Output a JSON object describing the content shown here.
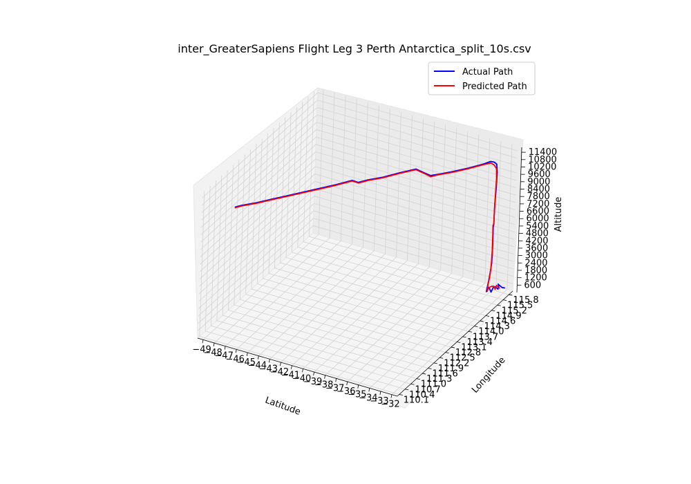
{
  "chart_data": {
    "type": "line",
    "projection": "3d",
    "title": "inter_GreaterSapiens Flight Leg 3 Perth Antarctica_split_10s.csv",
    "xlabel": "Latitude",
    "ylabel": "Longitude",
    "zlabel": "Altitude",
    "grid": true,
    "legend_placement": "top-right",
    "x_ticks": [
      "−49",
      "−48",
      "−47",
      "−46",
      "−45",
      "−44",
      "−43",
      "−42",
      "−41",
      "−40",
      "−39",
      "−38",
      "−37",
      "−36",
      "−35",
      "−34",
      "−33",
      "−32"
    ],
    "y_ticks": [
      "110.1",
      "110.4",
      "110.7",
      "111.0",
      "111.3",
      "111.6",
      "111.9",
      "112.2",
      "112.5",
      "112.8",
      "113.1",
      "113.4",
      "113.7",
      "114.0",
      "114.3",
      "114.6",
      "114.9",
      "115.2",
      "115.5",
      "115.8"
    ],
    "z_ticks": [
      "600",
      "1200",
      "1800",
      "2400",
      "3000",
      "3600",
      "4200",
      "4800",
      "5400",
      "6000",
      "6600",
      "7200",
      "7800",
      "8400",
      "9000",
      "9600",
      "10200",
      "10800",
      "11400"
    ],
    "xlim": [
      -49.5,
      -31.5
    ],
    "ylim": [
      110.0,
      116.0
    ],
    "zlim": [
      0,
      11800
    ],
    "series": [
      {
        "name": "Actual Path",
        "color": "#0000ff",
        "points": [
          [
            -31.95,
            115.85,
            350
          ],
          [
            -31.96,
            115.7,
            600
          ],
          [
            -31.97,
            115.55,
            1000
          ],
          [
            -31.99,
            115.5,
            1150
          ],
          [
            -32.01,
            115.55,
            900
          ],
          [
            -32.03,
            115.52,
            700
          ],
          [
            -32.05,
            115.4,
            1050
          ],
          [
            -32.08,
            115.3,
            1150
          ],
          [
            -32.1,
            115.2,
            900
          ],
          [
            -32.13,
            115.1,
            1400
          ],
          [
            -32.16,
            115.05,
            1500
          ],
          [
            -32.19,
            115.0,
            1200
          ],
          [
            -32.2,
            115.05,
            1500
          ],
          [
            -32.25,
            115.15,
            1900
          ],
          [
            -32.3,
            115.25,
            2500
          ],
          [
            -32.33,
            115.32,
            3000
          ],
          [
            -32.36,
            115.35,
            3500
          ],
          [
            -32.4,
            115.39,
            4500
          ],
          [
            -32.43,
            115.4,
            5800
          ],
          [
            -32.47,
            115.45,
            6000
          ],
          [
            -32.55,
            115.5,
            6400
          ],
          [
            -32.6,
            115.55,
            7500
          ],
          [
            -32.65,
            115.62,
            8600
          ],
          [
            -32.7,
            115.68,
            9800
          ],
          [
            -32.8,
            115.7,
            10400
          ],
          [
            -32.95,
            115.65,
            10600
          ],
          [
            -33.15,
            115.58,
            10700
          ],
          [
            -33.6,
            115.45,
            10550
          ],
          [
            -34.5,
            115.2,
            10350
          ],
          [
            -35.5,
            114.95,
            10150
          ],
          [
            -36.5,
            114.75,
            9950
          ],
          [
            -37.0,
            114.7,
            9800
          ],
          [
            -37.4,
            114.6,
            10050
          ],
          [
            -38.0,
            114.5,
            10350
          ],
          [
            -39.0,
            114.25,
            10150
          ],
          [
            -40.0,
            113.95,
            9950
          ],
          [
            -41.0,
            113.75,
            9750
          ],
          [
            -41.6,
            113.6,
            9600
          ],
          [
            -42.0,
            113.5,
            9800
          ],
          [
            -43.0,
            113.25,
            9550
          ],
          [
            -44.0,
            113.0,
            9350
          ],
          [
            -45.0,
            112.75,
            9150
          ],
          [
            -46.0,
            112.5,
            8950
          ],
          [
            -47.0,
            112.25,
            8750
          ],
          [
            -48.0,
            112.0,
            8550
          ],
          [
            -49.0,
            111.8,
            8350
          ],
          [
            -49.4,
            111.7,
            8250
          ]
        ]
      },
      {
        "name": "Predicted Path",
        "color": "#ff0000",
        "points": [
          [
            -32.0,
            115.6,
            650
          ],
          [
            -32.02,
            115.52,
            900
          ],
          [
            -32.05,
            115.45,
            1100
          ],
          [
            -32.08,
            115.4,
            850
          ],
          [
            -32.1,
            115.35,
            1150
          ],
          [
            -32.14,
            115.25,
            1300
          ],
          [
            -32.18,
            115.1,
            1350
          ],
          [
            -32.2,
            115.05,
            1150
          ],
          [
            -32.23,
            115.1,
            1600
          ],
          [
            -32.28,
            115.2,
            2000
          ],
          [
            -32.32,
            115.28,
            2600
          ],
          [
            -32.35,
            115.32,
            3200
          ],
          [
            -32.38,
            115.36,
            4000
          ],
          [
            -32.42,
            115.38,
            5200
          ],
          [
            -32.46,
            115.4,
            5900
          ],
          [
            -32.52,
            115.48,
            6000
          ],
          [
            -32.58,
            115.52,
            7000
          ],
          [
            -32.63,
            115.58,
            8200
          ],
          [
            -32.68,
            115.64,
            9400
          ],
          [
            -32.75,
            115.66,
            10100
          ],
          [
            -32.9,
            115.63,
            10400
          ],
          [
            -33.1,
            115.57,
            10600
          ],
          [
            -33.6,
            115.45,
            10500
          ],
          [
            -34.5,
            115.2,
            10300
          ],
          [
            -35.5,
            114.95,
            10100
          ],
          [
            -36.5,
            114.75,
            9900
          ],
          [
            -37.0,
            114.7,
            9700
          ],
          [
            -37.4,
            114.6,
            10000
          ],
          [
            -38.0,
            114.5,
            10300
          ],
          [
            -39.0,
            114.25,
            10100
          ],
          [
            -40.0,
            113.95,
            9900
          ],
          [
            -41.0,
            113.75,
            9700
          ],
          [
            -41.6,
            113.6,
            9550
          ],
          [
            -42.0,
            113.5,
            9750
          ],
          [
            -43.0,
            113.25,
            9500
          ],
          [
            -44.0,
            113.0,
            9300
          ],
          [
            -45.0,
            112.75,
            9100
          ],
          [
            -46.0,
            112.5,
            8900
          ],
          [
            -47.0,
            112.25,
            8700
          ],
          [
            -48.0,
            112.0,
            8500
          ],
          [
            -49.0,
            111.8,
            8300
          ],
          [
            -49.4,
            111.7,
            8200
          ]
        ]
      }
    ]
  }
}
